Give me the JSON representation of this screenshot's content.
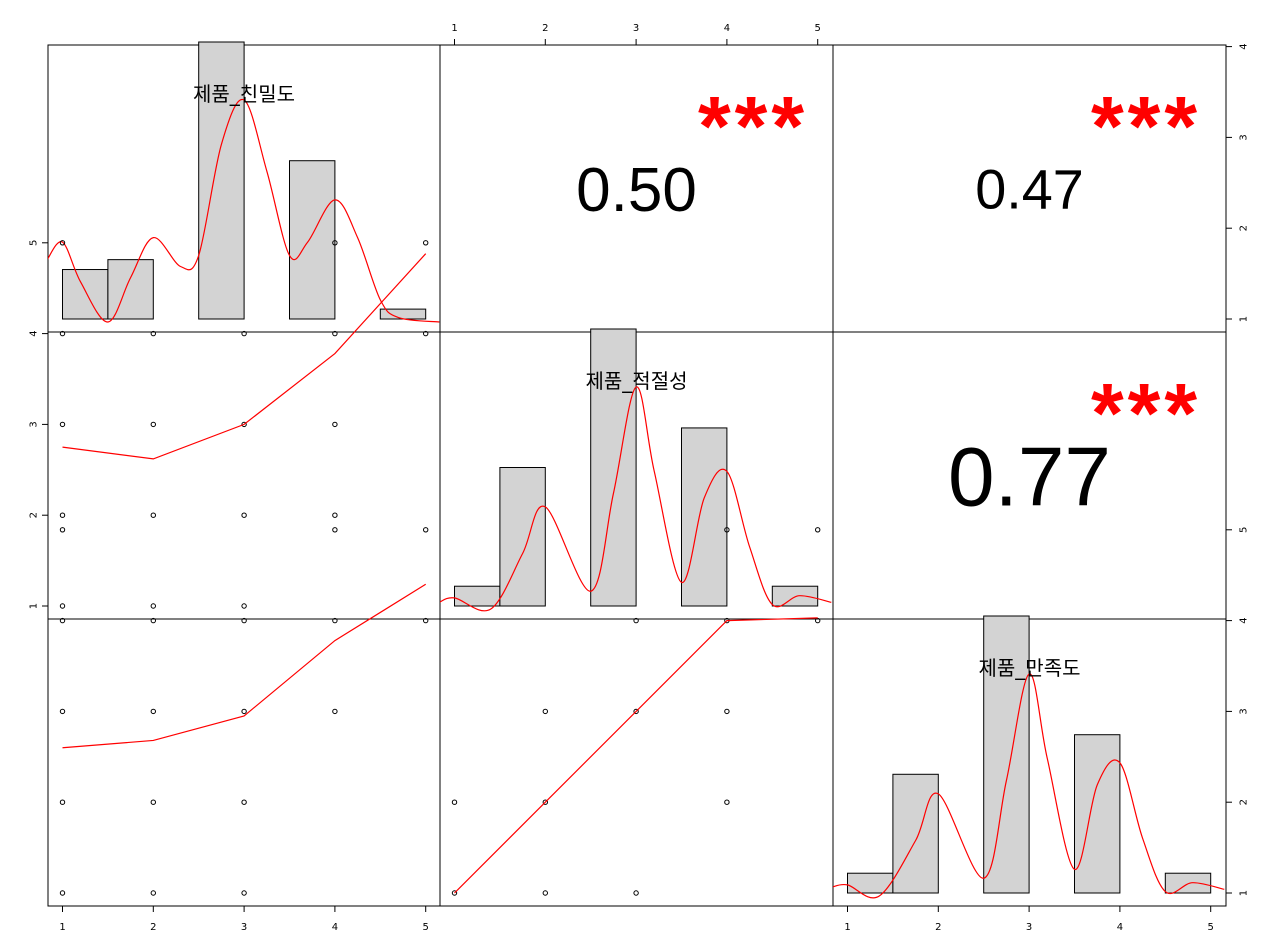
{
  "chart_data": {
    "type": "scatter",
    "title": "",
    "variables": [
      "제품_친밀도",
      "제품_적절성",
      "제품_만족도"
    ],
    "axis_ticks": [
      "1",
      "2",
      "3",
      "4",
      "5"
    ],
    "axis_range": [
      1,
      5
    ],
    "histograms": [
      {
        "variable": "제품_친밀도",
        "bins": [
          {
            "from": 1.0,
            "to": 1.5,
            "count": 5
          },
          {
            "from": 1.5,
            "to": 2.0,
            "count": 6
          },
          {
            "from": 2.5,
            "to": 3.0,
            "count": 28
          },
          {
            "from": 3.5,
            "to": 4.0,
            "count": 16
          },
          {
            "from": 4.5,
            "to": 5.0,
            "count": 1
          }
        ],
        "density": [
          [
            0.83,
            0.28
          ],
          [
            1.0,
            0.36
          ],
          [
            1.2,
            0.18
          ],
          [
            1.5,
            0.0
          ],
          [
            1.75,
            0.2
          ],
          [
            2.0,
            0.38
          ],
          [
            2.3,
            0.25
          ],
          [
            2.5,
            0.3
          ],
          [
            2.75,
            0.8
          ],
          [
            3.0,
            1.0
          ],
          [
            3.25,
            0.68
          ],
          [
            3.5,
            0.3
          ],
          [
            3.7,
            0.36
          ],
          [
            4.0,
            0.55
          ],
          [
            4.25,
            0.38
          ],
          [
            4.5,
            0.1
          ],
          [
            4.7,
            0.02
          ],
          [
            5.15,
            0.0
          ]
        ]
      },
      {
        "variable": "제품_적절성",
        "bins": [
          {
            "from": 1.0,
            "to": 1.5,
            "count": 1
          },
          {
            "from": 1.5,
            "to": 2.0,
            "count": 7
          },
          {
            "from": 2.5,
            "to": 3.0,
            "count": 14
          },
          {
            "from": 3.5,
            "to": 4.0,
            "count": 9
          },
          {
            "from": 4.5,
            "to": 5.0,
            "count": 1
          }
        ],
        "density": [
          [
            0.83,
            0.03
          ],
          [
            1.0,
            0.05
          ],
          [
            1.4,
            0.0
          ],
          [
            1.75,
            0.25
          ],
          [
            2.0,
            0.46
          ],
          [
            2.5,
            0.08
          ],
          [
            2.75,
            0.52
          ],
          [
            3.0,
            1.0
          ],
          [
            3.2,
            0.62
          ],
          [
            3.5,
            0.12
          ],
          [
            3.75,
            0.5
          ],
          [
            4.0,
            0.62
          ],
          [
            4.25,
            0.28
          ],
          [
            4.5,
            0.02
          ],
          [
            4.8,
            0.06
          ],
          [
            5.15,
            0.03
          ]
        ]
      },
      {
        "variable": "제품_만족도",
        "bins": [
          {
            "from": 1.0,
            "to": 1.5,
            "count": 1
          },
          {
            "from": 1.5,
            "to": 2.0,
            "count": 6
          },
          {
            "from": 2.5,
            "to": 3.0,
            "count": 14
          },
          {
            "from": 3.5,
            "to": 4.0,
            "count": 8
          },
          {
            "from": 4.5,
            "to": 5.0,
            "count": 1
          }
        ],
        "density": [
          [
            0.83,
            0.04
          ],
          [
            1.0,
            0.05
          ],
          [
            1.35,
            0.0
          ],
          [
            1.75,
            0.25
          ],
          [
            2.0,
            0.46
          ],
          [
            2.5,
            0.08
          ],
          [
            2.75,
            0.52
          ],
          [
            3.0,
            1.0
          ],
          [
            3.2,
            0.62
          ],
          [
            3.5,
            0.12
          ],
          [
            3.75,
            0.5
          ],
          [
            4.0,
            0.6
          ],
          [
            4.25,
            0.26
          ],
          [
            4.5,
            0.02
          ],
          [
            4.8,
            0.06
          ],
          [
            5.15,
            0.03
          ]
        ]
      }
    ],
    "scatter_panels": [
      {
        "x_var": "제품_친밀도",
        "y_var": "제품_적절성",
        "points": [
          [
            1,
            1
          ],
          [
            1,
            2
          ],
          [
            1,
            3
          ],
          [
            1,
            4
          ],
          [
            1,
            5
          ],
          [
            2,
            1
          ],
          [
            2,
            2
          ],
          [
            2,
            3
          ],
          [
            2,
            4
          ],
          [
            3,
            1
          ],
          [
            3,
            2
          ],
          [
            3,
            3
          ],
          [
            3,
            4
          ],
          [
            4,
            2
          ],
          [
            4,
            3
          ],
          [
            4,
            4
          ],
          [
            4,
            5
          ],
          [
            5,
            4
          ],
          [
            5,
            5
          ]
        ],
        "smooth": [
          [
            1,
            2.75
          ],
          [
            2,
            2.62
          ],
          [
            3,
            3.0
          ],
          [
            4,
            3.78
          ],
          [
            5,
            4.88
          ]
        ]
      },
      {
        "x_var": "제품_친밀도",
        "y_var": "제품_만족도",
        "points": [
          [
            1,
            1
          ],
          [
            1,
            2
          ],
          [
            1,
            3
          ],
          [
            1,
            4
          ],
          [
            1,
            5
          ],
          [
            2,
            1
          ],
          [
            2,
            2
          ],
          [
            2,
            3
          ],
          [
            2,
            4
          ],
          [
            3,
            1
          ],
          [
            3,
            2
          ],
          [
            3,
            3
          ],
          [
            3,
            4
          ],
          [
            4,
            3
          ],
          [
            4,
            4
          ],
          [
            4,
            5
          ],
          [
            5,
            4
          ],
          [
            5,
            5
          ]
        ],
        "smooth": [
          [
            1,
            2.6
          ],
          [
            2,
            2.68
          ],
          [
            3,
            2.95
          ],
          [
            4,
            3.78
          ],
          [
            5,
            4.4
          ]
        ]
      },
      {
        "x_var": "제품_적절성",
        "y_var": "제품_만족도",
        "points": [
          [
            1,
            1
          ],
          [
            1,
            2
          ],
          [
            2,
            1
          ],
          [
            2,
            2
          ],
          [
            2,
            3
          ],
          [
            3,
            1
          ],
          [
            3,
            3
          ],
          [
            3,
            4
          ],
          [
            4,
            2
          ],
          [
            4,
            3
          ],
          [
            4,
            4
          ],
          [
            4,
            5
          ],
          [
            5,
            4
          ],
          [
            5,
            5
          ]
        ],
        "smooth": [
          [
            1,
            1.0
          ],
          [
            2,
            2.0
          ],
          [
            3,
            3.0
          ],
          [
            4,
            4.0
          ],
          [
            5,
            4.03
          ]
        ]
      }
    ],
    "correlations": [
      {
        "x_var": "제품_적절성",
        "y_var": "제품_친밀도",
        "value": "0.50",
        "stars": "***",
        "font_scale": 1.0
      },
      {
        "x_var": "제품_만족도",
        "y_var": "제품_친밀도",
        "value": "0.47",
        "stars": "***",
        "font_scale": 0.9
      },
      {
        "x_var": "제품_만족도",
        "y_var": "제품_적절성",
        "value": "0.77",
        "stars": "***",
        "font_scale": 1.35
      }
    ],
    "colors": {
      "bar_fill": "#d3d3d3",
      "bar_stroke": "#000000",
      "smooth_line": "#ff0000",
      "density_line": "#ff0000",
      "stars": "#ff0000",
      "points": "#000000"
    }
  }
}
